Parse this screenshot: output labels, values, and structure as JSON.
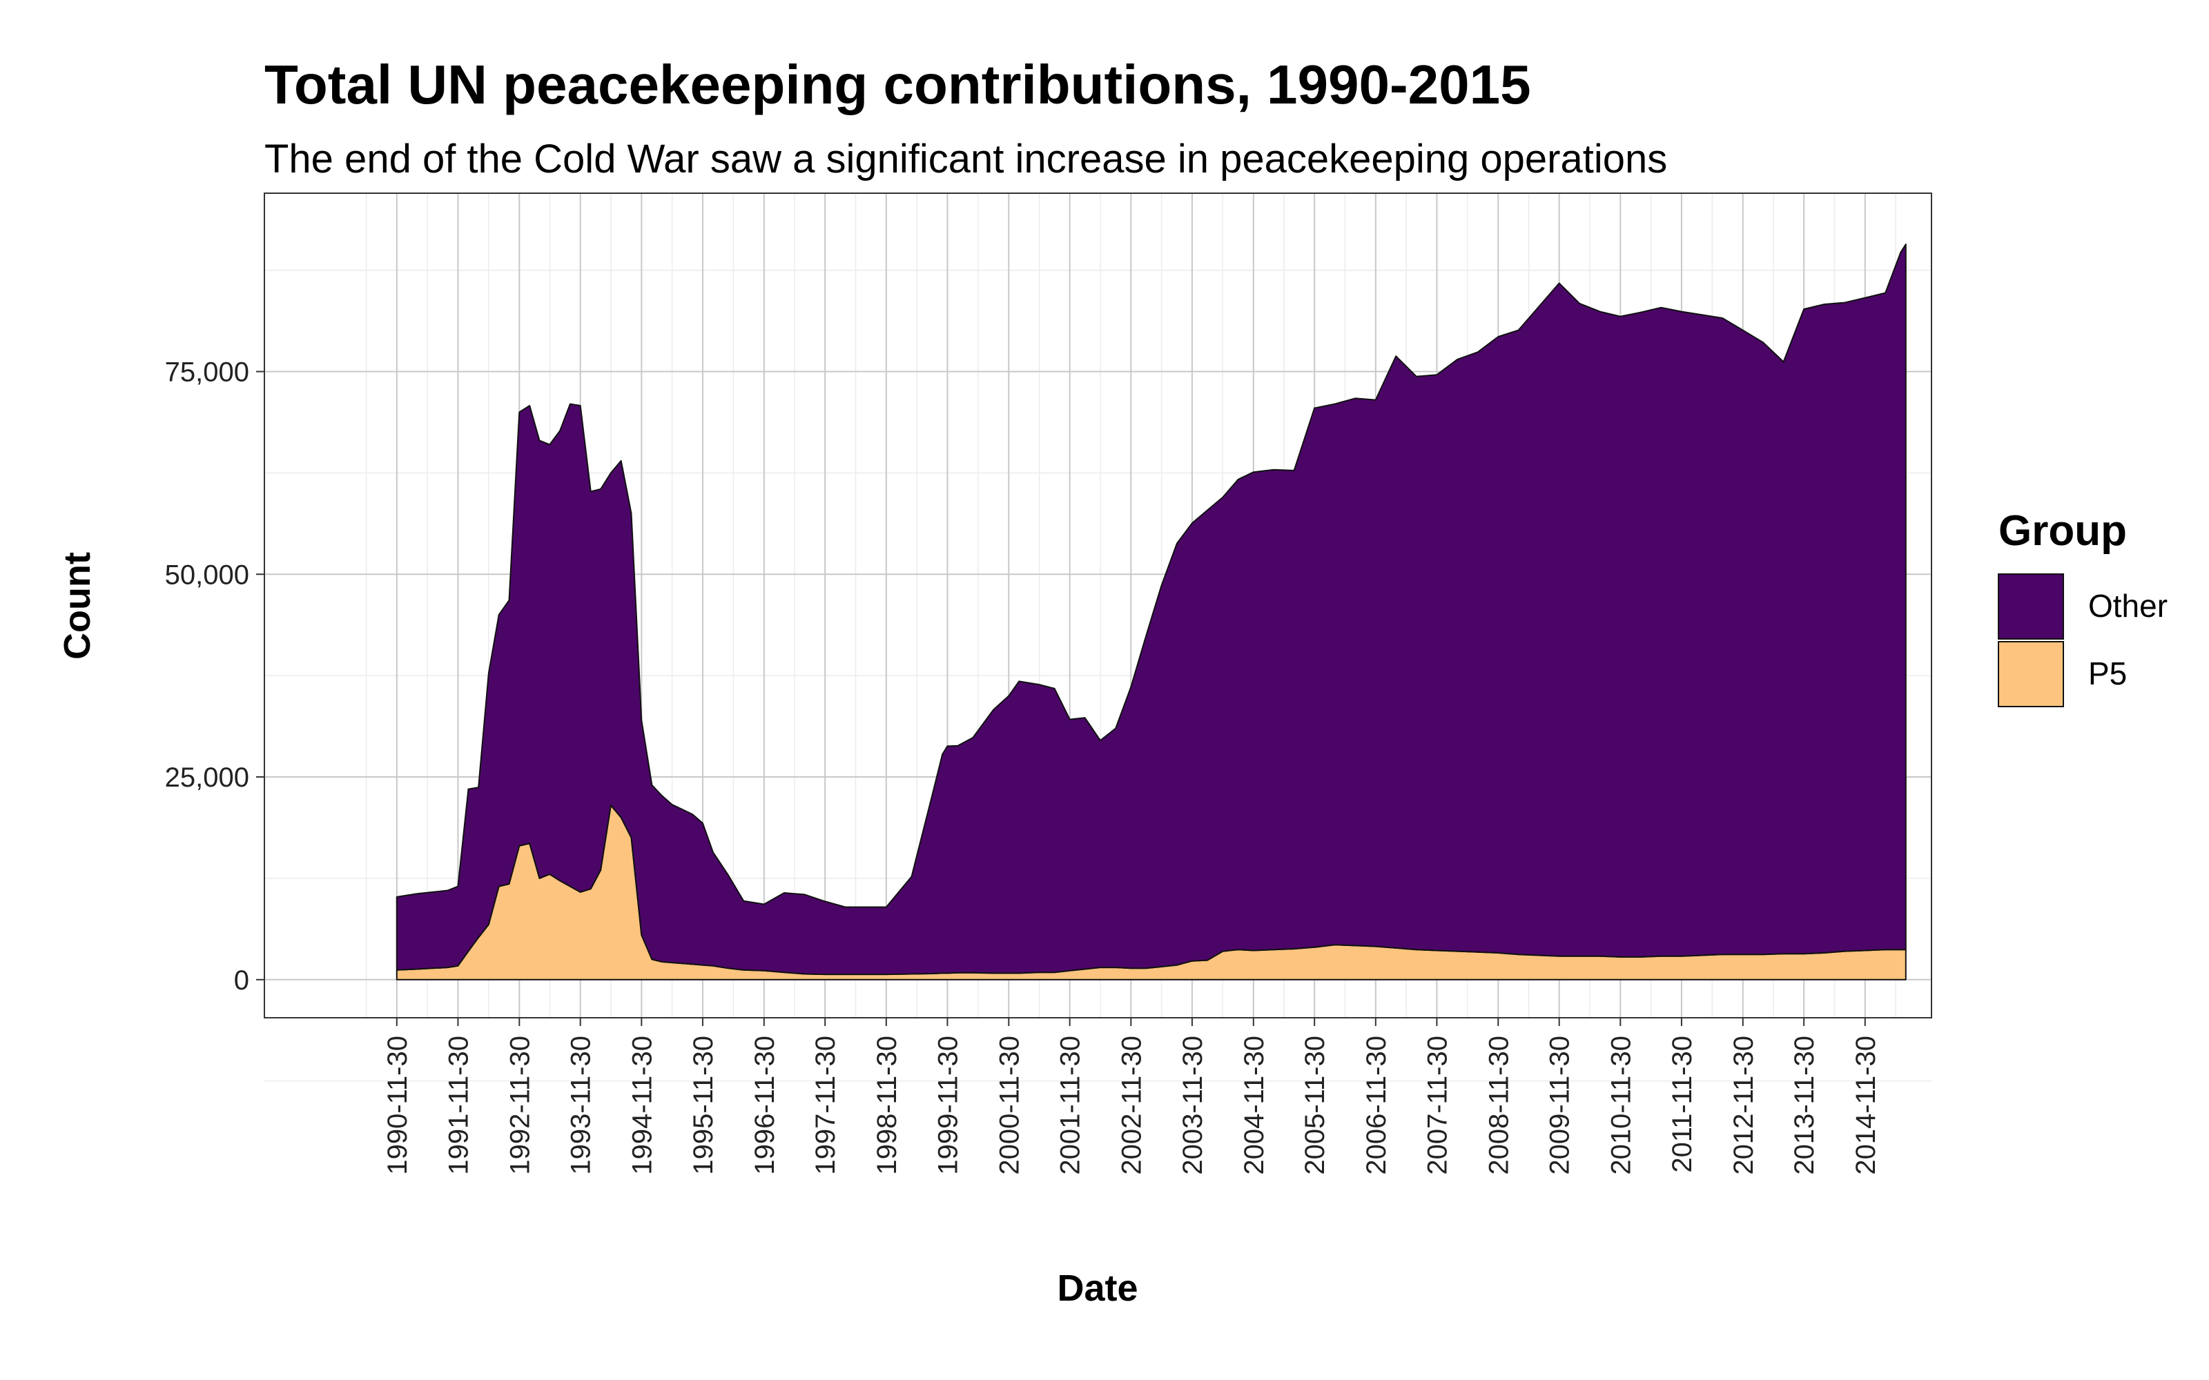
{
  "chart_data": {
    "type": "area",
    "stacked": true,
    "title": "Total UN peacekeeping contributions, 1990-2015",
    "subtitle": "The end of the Cold War saw a significant increase in peacekeeping operations",
    "xlabel": "Date",
    "ylabel": "Count",
    "ylim": [
      -4700,
      97000
    ],
    "yticks": [
      0,
      25000,
      50000,
      75000
    ],
    "ytick_labels": [
      "0",
      "25,000",
      "50,000",
      "75,000"
    ],
    "xlim_years": [
      1988.75,
      2016.0
    ],
    "xticks": [
      "1990-11-30",
      "1991-11-30",
      "1992-11-30",
      "1993-11-30",
      "1994-11-30",
      "1995-11-30",
      "1996-11-30",
      "1997-11-30",
      "1998-11-30",
      "1999-11-30",
      "2000-11-30",
      "2001-11-30",
      "2002-11-30",
      "2003-11-30",
      "2004-11-30",
      "2005-11-30",
      "2006-11-30",
      "2007-11-30",
      "2008-11-30",
      "2009-11-30",
      "2010-11-30",
      "2011-11-30",
      "2012-11-30",
      "2013-11-30",
      "2014-11-30"
    ],
    "grid": true,
    "legend": {
      "title": "Group",
      "placement": "right"
    },
    "x": [
      "1990-11-30",
      "1991-03-31",
      "1991-06-30",
      "1991-09-30",
      "1991-11-30",
      "1992-01-31",
      "1992-03-31",
      "1992-05-31",
      "1992-07-31",
      "1992-09-30",
      "1992-11-30",
      "1993-01-31",
      "1993-03-31",
      "1993-05-31",
      "1993-07-31",
      "1993-09-30",
      "1993-11-30",
      "1994-01-31",
      "1994-03-31",
      "1994-05-31",
      "1994-07-31",
      "1994-09-30",
      "1994-11-30",
      "1995-01-31",
      "1995-03-31",
      "1995-05-31",
      "1995-07-31",
      "1995-09-30",
      "1995-11-30",
      "1996-01-31",
      "1996-04-30",
      "1996-07-31",
      "1996-11-30",
      "1997-03-31",
      "1997-07-31",
      "1997-11-30",
      "1998-03-31",
      "1998-07-31",
      "1998-11-30",
      "1999-04-30",
      "1999-08-31",
      "1999-10-31",
      "1999-11-30",
      "2000-01-31",
      "2000-04-30",
      "2000-08-31",
      "2000-11-30",
      "2001-01-31",
      "2001-05-31",
      "2001-08-31",
      "2001-11-30",
      "2002-02-28",
      "2002-05-31",
      "2002-08-31",
      "2002-11-30",
      "2003-02-28",
      "2003-05-31",
      "2003-08-31",
      "2003-11-30",
      "2004-02-29",
      "2004-05-31",
      "2004-08-31",
      "2004-11-30",
      "2005-03-31",
      "2005-07-31",
      "2005-11-30",
      "2006-03-31",
      "2006-07-31",
      "2006-11-30",
      "2007-03-31",
      "2007-07-31",
      "2007-11-30",
      "2008-03-31",
      "2008-07-31",
      "2008-11-30",
      "2009-03-31",
      "2009-07-31",
      "2009-11-30",
      "2010-03-31",
      "2010-07-31",
      "2010-11-30",
      "2011-03-31",
      "2011-07-31",
      "2011-11-30",
      "2012-03-31",
      "2012-07-31",
      "2012-11-30",
      "2013-03-31",
      "2013-07-31",
      "2013-11-30",
      "2014-03-31",
      "2014-07-31",
      "2014-11-30",
      "2015-03-31",
      "2015-06-30",
      "2015-07-31"
    ],
    "series": [
      {
        "name": "P5",
        "color": "#fdc47f",
        "values": [
          1200,
          1300,
          1400,
          1500,
          1700,
          3500,
          5200,
          6800,
          11500,
          11800,
          16500,
          16800,
          12500,
          13000,
          12200,
          11500,
          10800,
          11200,
          13500,
          21500,
          20000,
          17500,
          5500,
          2500,
          2200,
          2100,
          2000,
          1900,
          1800,
          1700,
          1400,
          1200,
          1100,
          900,
          700,
          650,
          650,
          650,
          650,
          700,
          750,
          800,
          800,
          850,
          850,
          800,
          800,
          800,
          900,
          900,
          1100,
          1300,
          1500,
          1500,
          1400,
          1400,
          1600,
          1800,
          2300,
          2400,
          3500,
          3700,
          3600,
          3700,
          3800,
          4000,
          4300,
          4200,
          4100,
          3900,
          3700,
          3600,
          3500,
          3400,
          3300,
          3100,
          3000,
          2900,
          2900,
          2900,
          2800,
          2800,
          2900,
          2900,
          3000,
          3100,
          3100,
          3100,
          3200,
          3200,
          3300,
          3500,
          3600,
          3700,
          3700,
          3700
        ]
      },
      {
        "name": "Other",
        "color": "#4b0567",
        "values": [
          9000,
          9300,
          9400,
          9500,
          9800,
          20000,
          18500,
          31000,
          33500,
          35000,
          53500,
          54000,
          54000,
          53000,
          55500,
          59500,
          60000,
          49000,
          47000,
          41000,
          44000,
          40000,
          26500,
          21500,
          20500,
          19500,
          19000,
          18500,
          17500,
          14000,
          11500,
          8500,
          8200,
          9800,
          9800,
          9000,
          8300,
          8300,
          8300,
          12000,
          22000,
          27000,
          28000,
          28000,
          29000,
          32500,
          34200,
          36000,
          35500,
          35000,
          31000,
          31000,
          28000,
          29500,
          34700,
          41000,
          47000,
          52000,
          54000,
          55500,
          56000,
          58000,
          59000,
          59200,
          59000,
          66500,
          66700,
          67500,
          67400,
          73000,
          70700,
          71000,
          73000,
          74000,
          76000,
          77000,
          80000,
          83000,
          80500,
          79500,
          79000,
          79500,
          80000,
          79500,
          79000,
          78500,
          77000,
          75500,
          73000,
          79500,
          80000,
          80000,
          80500,
          81000,
          86000,
          87000
        ]
      }
    ]
  }
}
